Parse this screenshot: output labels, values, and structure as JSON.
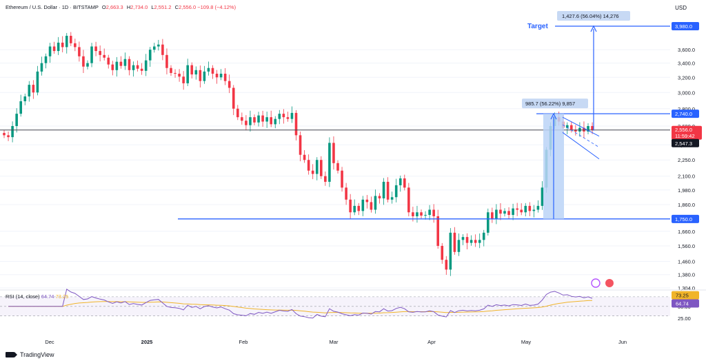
{
  "header": {
    "title": "Ethereum / U.S. Dollar · 1D · BITSTAMP",
    "open_label": "O",
    "open": "2,663.3",
    "high_label": "H",
    "high": "2,734.0",
    "low_label": "L",
    "low": "2,551.2",
    "close_label": "C",
    "close": "2,556.0",
    "change": "−109.8 (−4.12%)"
  },
  "currency": "USD",
  "rsi": {
    "label": "RSI (14, close)",
    "value": "64.74",
    "ma": "73.25"
  },
  "annotations": {
    "target_label": "Target",
    "target_measure": "1,427.6 (56.04%) 14,276",
    "pole_measure": "985.7 (56.22%) 9,857"
  },
  "price_tags": {
    "target": "3,980.0",
    "flag_top": "2,740.0",
    "last": "2,556.0",
    "countdown": "11:59:42",
    "prev": "2,547.3",
    "support": "1,750.0"
  },
  "rsi_tags": {
    "ma": "73.25",
    "rsi": "64.74"
  },
  "watermark": "TradingView",
  "colors": {
    "up": "#089981",
    "down": "#f23645",
    "line_blue": "#2962ff",
    "rsi": "#7e57c2",
    "rsi_ma": "#f0b429",
    "measure_fill": "#bbd4f7"
  },
  "chart_data": {
    "type": "candlestick",
    "symbol": "ETH/USD",
    "interval": "1D",
    "price_ticks": [
      "3,600.0",
      "3,400.0",
      "3,200.0",
      "3,000.0",
      "2,800.0",
      "2,600.0",
      "2,400.0",
      "2,250.0",
      "2,100.0",
      "1,980.0",
      "1,860.0",
      "1,660.0",
      "1,560.0",
      "1,460.0",
      "1,380.0",
      "1,304.0"
    ],
    "rsi_ticks": [
      "50.00",
      "25.00"
    ],
    "x_ticks": [
      "Dec",
      "2025",
      "Feb",
      "Mar",
      "Apr",
      "May",
      "Jun"
    ],
    "closes": [
      2500,
      2480,
      2600,
      2740,
      2890,
      2950,
      3100,
      3000,
      3280,
      3400,
      3500,
      3650,
      3580,
      3710,
      3640,
      3820,
      3700,
      3640,
      3500,
      3350,
      3400,
      3650,
      3580,
      3520,
      3480,
      3380,
      3300,
      3420,
      3360,
      3460,
      3300,
      3370,
      3320,
      3290,
      3440,
      3600,
      3650,
      3680,
      3520,
      3330,
      3260,
      3250,
      3210,
      3120,
      3370,
      3240,
      3300,
      3150,
      3280,
      3330,
      3250,
      3200,
      3250,
      3150,
      3060,
      2800,
      2700,
      2660,
      2610,
      2700,
      2640,
      2720,
      2650,
      2700,
      2620,
      2680,
      2740,
      2700,
      2680,
      2750,
      2500,
      2300,
      2250,
      2150,
      2120,
      2250,
      2100,
      2050,
      2420,
      2220,
      2150,
      2000,
      1900,
      1800,
      1850,
      1810,
      1900,
      1880,
      1820,
      1930,
      1910,
      2050,
      1900,
      1920,
      2020,
      2080,
      2000,
      1800,
      1770,
      1800,
      1775,
      1780,
      1820,
      1770,
      1560,
      1470,
      1410,
      1650,
      1520,
      1600,
      1620,
      1580,
      1600,
      1580,
      1600,
      1650,
      1800,
      1750,
      1820,
      1790,
      1810,
      1780,
      1830,
      1820,
      1800,
      1850,
      1810,
      1820,
      1850,
      2000,
      2350,
      2600,
      2700,
      2650,
      2580,
      2610,
      2560,
      2540,
      2580,
      2540,
      2600,
      2556
    ],
    "lines": {
      "support": 1750,
      "flag_top": 2740,
      "target": 3980
    },
    "measure_pole": {
      "from": 1750,
      "to": 2740,
      "change": 985.7,
      "percent": 56.22
    },
    "measure_target": {
      "from": 2550,
      "to": 3980,
      "change": 1427.6,
      "percent": 56.04
    }
  }
}
